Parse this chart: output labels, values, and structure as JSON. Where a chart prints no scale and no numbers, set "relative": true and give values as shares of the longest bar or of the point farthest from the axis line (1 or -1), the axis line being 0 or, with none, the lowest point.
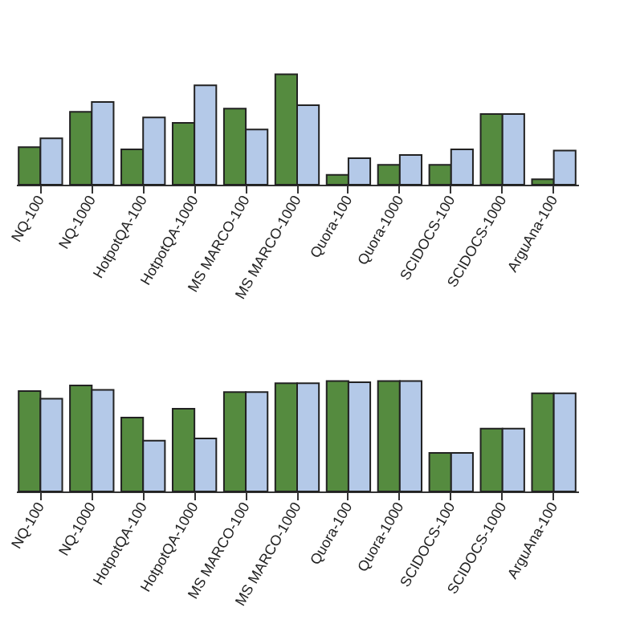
{
  "chart_data": [
    {
      "type": "bar",
      "relative": true,
      "categories": [
        "NQ-100",
        "NQ-1000",
        "HotpotQA-100",
        "HotpotQA-1000",
        "MS MARCO-100",
        "MS MARCO-1000",
        "Quora-100",
        "Quora-1000",
        "SCIDOCS-100",
        "SCIDOCS-1000",
        "ArguAna-100"
      ],
      "series": [
        {
          "color": "#558b3f",
          "values": [
            0.34,
            0.66,
            0.32,
            0.56,
            0.69,
            1,
            0.09,
            0.18,
            0.18,
            0.64,
            0.05
          ]
        },
        {
          "color": "#b4c9e8",
          "values": [
            0.42,
            0.75,
            0.61,
            0.9,
            0.5,
            0.72,
            0.24,
            0.27,
            0.32,
            0.64,
            0.31
          ]
        }
      ]
    },
    {
      "type": "bar",
      "relative": true,
      "categories": [
        "NQ-100",
        "NQ-1000",
        "HotpotQA-100",
        "HotpotQA-1000",
        "MS MARCO-100",
        "MS MARCO-1000",
        "Quora-100",
        "Quora-1000",
        "SCIDOCS-100",
        "SCIDOCS-1000",
        "ArguAna-100"
      ],
      "series": [
        {
          "color": "#558b3f",
          "values": [
            0.91,
            0.96,
            0.67,
            0.75,
            0.9,
            0.98,
            1,
            1,
            0.35,
            0.57,
            0.89
          ]
        },
        {
          "color": "#b4c9e8",
          "values": [
            0.84,
            0.92,
            0.46,
            0.48,
            0.9,
            0.98,
            0.99,
            1,
            0.35,
            0.57,
            0.89
          ]
        }
      ]
    }
  ]
}
